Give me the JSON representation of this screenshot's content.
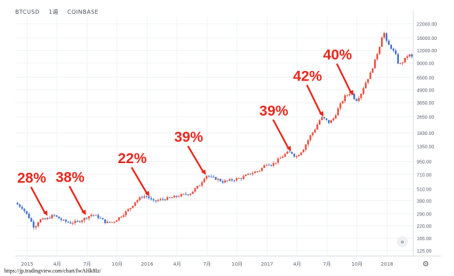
{
  "header": {
    "symbol": "BTCUSD",
    "interval": "1週",
    "exchange": "COINBASE"
  },
  "source_url": "https://jp.tradingview.com/chart/IwAHk8Iz/",
  "icons": {
    "settings": "gear-icon",
    "scroll": "double-chevron-down-icon"
  },
  "colors": {
    "up": "#e74c3c",
    "down": "#4472c4",
    "annotation": "#e8281e",
    "axis_text": "#5b6170",
    "grid": "#f0f2f5"
  },
  "chart_data": {
    "type": "candlestick",
    "title": "",
    "y_scale": "log",
    "ylim": [
      110,
      26000
    ],
    "y_ticks": [
      125,
      165,
      220,
      290,
      390,
      510,
      710,
      950,
      1350,
      1830,
      2650,
      3650,
      4900,
      6500,
      9000,
      12000,
      16000,
      22000
    ],
    "y_tick_labels": [
      "125.00",
      "165.00",
      "220.00",
      "290.00",
      "390.00",
      "510.00",
      "710.00",
      "950.00",
      "1350.00",
      "1830.00",
      "2650.00",
      "3650.00",
      "4900.00",
      "6500.00",
      "9000.00",
      "12000.00",
      "16000.00",
      "22000.00"
    ],
    "x_ticks": [
      {
        "t": 2015.0,
        "label": "2015"
      },
      {
        "t": 2015.25,
        "label": "4月"
      },
      {
        "t": 2015.5,
        "label": "7月"
      },
      {
        "t": 2015.75,
        "label": "10月"
      },
      {
        "t": 2016.0,
        "label": "2016"
      },
      {
        "t": 2016.25,
        "label": "4月"
      },
      {
        "t": 2016.5,
        "label": "7月"
      },
      {
        "t": 2016.75,
        "label": "10月"
      },
      {
        "t": 2017.0,
        "label": "2017"
      },
      {
        "t": 2017.25,
        "label": "4月"
      },
      {
        "t": 2017.5,
        "label": "7月"
      },
      {
        "t": 2017.75,
        "label": "10月"
      },
      {
        "t": 2018.0,
        "label": "2018"
      }
    ],
    "xlim": [
      2014.9,
      2018.22
    ],
    "price_path": [
      [
        2014.9,
        370
      ],
      [
        2014.96,
        330
      ],
      [
        2015.02,
        260
      ],
      [
        2015.06,
        210
      ],
      [
        2015.1,
        250
      ],
      [
        2015.16,
        255
      ],
      [
        2015.22,
        280
      ],
      [
        2015.3,
        245
      ],
      [
        2015.36,
        235
      ],
      [
        2015.42,
        240
      ],
      [
        2015.48,
        260
      ],
      [
        2015.54,
        285
      ],
      [
        2015.6,
        265
      ],
      [
        2015.66,
        235
      ],
      [
        2015.72,
        240
      ],
      [
        2015.8,
        285
      ],
      [
        2015.86,
        330
      ],
      [
        2015.9,
        380
      ],
      [
        2015.96,
        430
      ],
      [
        2016.0,
        430
      ],
      [
        2016.05,
        380
      ],
      [
        2016.12,
        400
      ],
      [
        2016.2,
        415
      ],
      [
        2016.28,
        440
      ],
      [
        2016.36,
        460
      ],
      [
        2016.44,
        560
      ],
      [
        2016.49,
        700
      ],
      [
        2016.53,
        660
      ],
      [
        2016.58,
        640
      ],
      [
        2016.63,
        600
      ],
      [
        2016.7,
        620
      ],
      [
        2016.78,
        650
      ],
      [
        2016.86,
        720
      ],
      [
        2016.94,
        780
      ],
      [
        2017.0,
        920
      ],
      [
        2017.04,
        880
      ],
      [
        2017.1,
        1000
      ],
      [
        2017.16,
        1150
      ],
      [
        2017.2,
        1180
      ],
      [
        2017.24,
        1050
      ],
      [
        2017.3,
        1250
      ],
      [
        2017.36,
        1700
      ],
      [
        2017.4,
        2000
      ],
      [
        2017.45,
        2600
      ],
      [
        2017.48,
        2500
      ],
      [
        2017.52,
        2300
      ],
      [
        2017.56,
        2600
      ],
      [
        2017.6,
        3300
      ],
      [
        2017.65,
        4200
      ],
      [
        2017.7,
        4600
      ],
      [
        2017.74,
        3800
      ],
      [
        2017.78,
        4400
      ],
      [
        2017.82,
        5700
      ],
      [
        2017.86,
        7000
      ],
      [
        2017.9,
        9500
      ],
      [
        2017.94,
        13500
      ],
      [
        2017.97,
        19000
      ],
      [
        2018.0,
        14000
      ],
      [
        2018.03,
        13000
      ],
      [
        2018.07,
        11000
      ],
      [
        2018.1,
        8500
      ],
      [
        2018.14,
        9500
      ],
      [
        2018.18,
        11000
      ],
      [
        2018.22,
        10000
      ]
    ],
    "annotations": [
      {
        "label": "28%",
        "t": 2015.17,
        "price": 275
      },
      {
        "label": "38%",
        "t": 2015.49,
        "price": 280
      },
      {
        "label": "22%",
        "t": 2016.02,
        "price": 430
      },
      {
        "label": "39%",
        "t": 2016.49,
        "price": 700
      },
      {
        "label": "39%",
        "t": 2017.2,
        "price": 1200
      },
      {
        "label": "42%",
        "t": 2017.47,
        "price": 2650
      },
      {
        "label": "40%",
        "t": 2017.72,
        "price": 4300
      }
    ]
  }
}
